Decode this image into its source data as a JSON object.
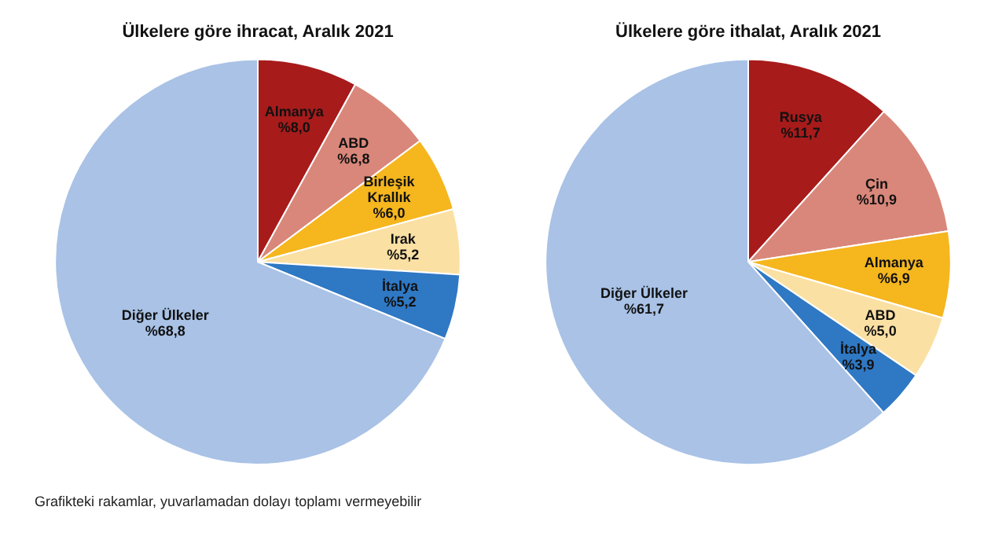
{
  "chart_data": [
    {
      "type": "pie",
      "title": "Ülkelere göre ihracat, Aralık 2021",
      "categories": [
        "Almanya",
        "ABD",
        "Birleşik Krallık",
        "Irak",
        "İtalya",
        "Diğer Ülkeler"
      ],
      "values": [
        8.0,
        6.8,
        6.0,
        5.2,
        5.2,
        68.8
      ],
      "value_labels": [
        "%8,0",
        "%6,8",
        "%6,0",
        "%5,2",
        "%5,2",
        "%68,8"
      ],
      "colors": [
        "#a81b1b",
        "#d9877a",
        "#f5b61e",
        "#fbe0a3",
        "#2f78c4",
        "#a9c2e6"
      ],
      "annotations": [
        "Grafikteki rakamlar, yuvarlamadan dolayı toplamı vermeyebilir"
      ]
    },
    {
      "type": "pie",
      "title": "Ülkelere göre ithalat, Aralık 2021",
      "categories": [
        "Rusya",
        "Çin",
        "Almanya",
        "ABD",
        "İtalya",
        "Diğer Ülkeler"
      ],
      "values": [
        11.7,
        10.9,
        6.9,
        5.0,
        3.9,
        61.7
      ],
      "value_labels": [
        "%11,7",
        "%10,9",
        "%6,9",
        "%5,0",
        "%3,9",
        "%61,7"
      ],
      "colors": [
        "#a81b1b",
        "#d9877a",
        "#f5b61e",
        "#fbe0a3",
        "#2f78c4",
        "#a9c2e6"
      ]
    }
  ]
}
